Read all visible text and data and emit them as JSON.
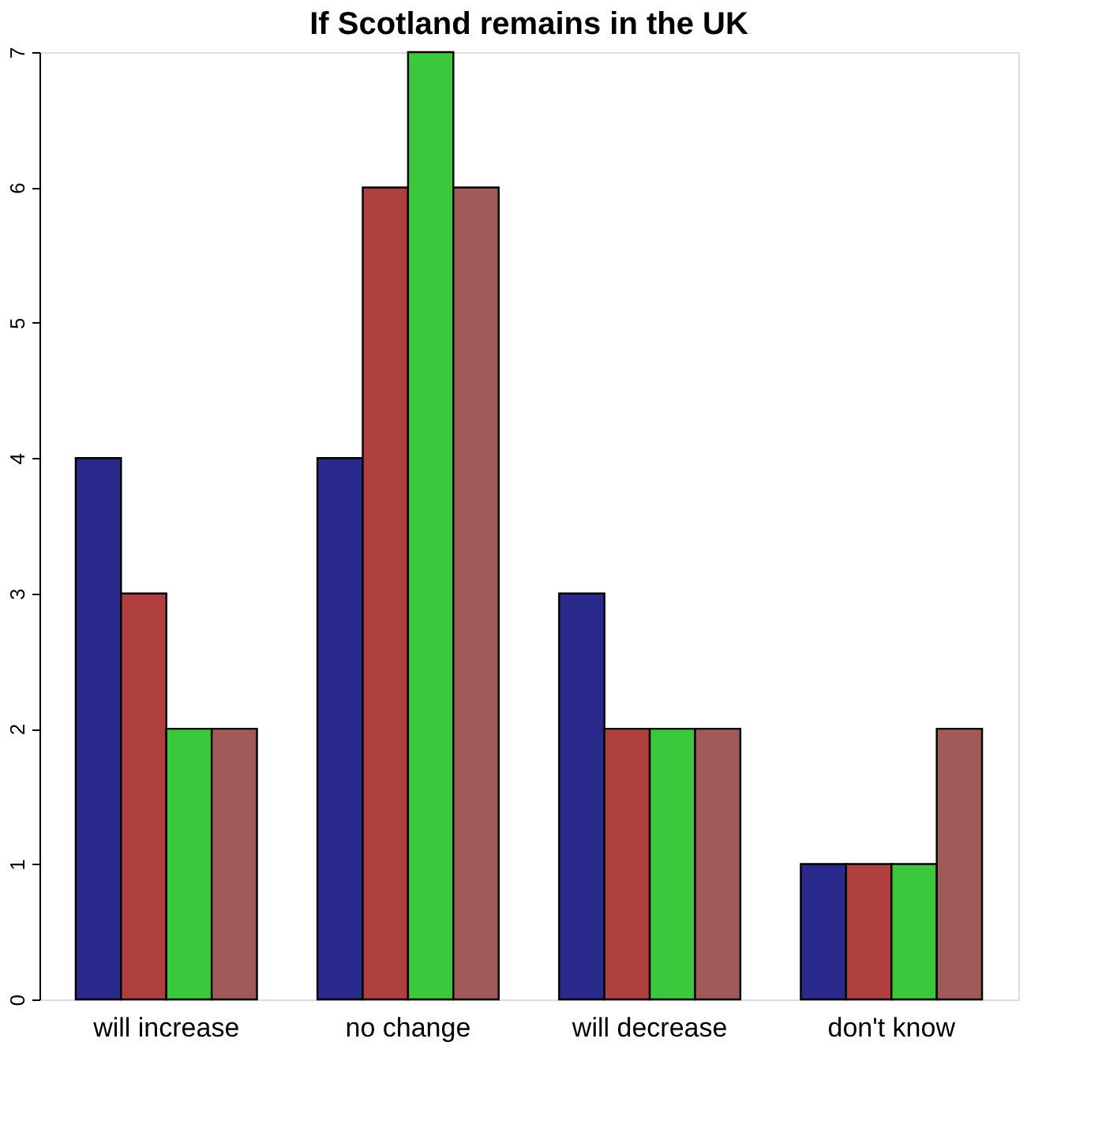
{
  "chart_data": {
    "type": "bar",
    "title": "If Scotland remains in the UK",
    "categories": [
      "will increase",
      "no change",
      "will decrease",
      "don't know"
    ],
    "series": [
      {
        "color": "#2a2a8c",
        "values": [
          4,
          4,
          3,
          1
        ]
      },
      {
        "color": "#b04040",
        "values": [
          3,
          6,
          2,
          1
        ]
      },
      {
        "color": "#3cc83c",
        "values": [
          2,
          7,
          2,
          1
        ]
      },
      {
        "color": "#a05a5a",
        "values": [
          2,
          6,
          2,
          2
        ]
      }
    ],
    "ylim": [
      0,
      7
    ],
    "yticks": [
      0,
      1,
      2,
      3,
      4,
      5,
      6,
      7
    ],
    "grid": false,
    "legend": false
  }
}
